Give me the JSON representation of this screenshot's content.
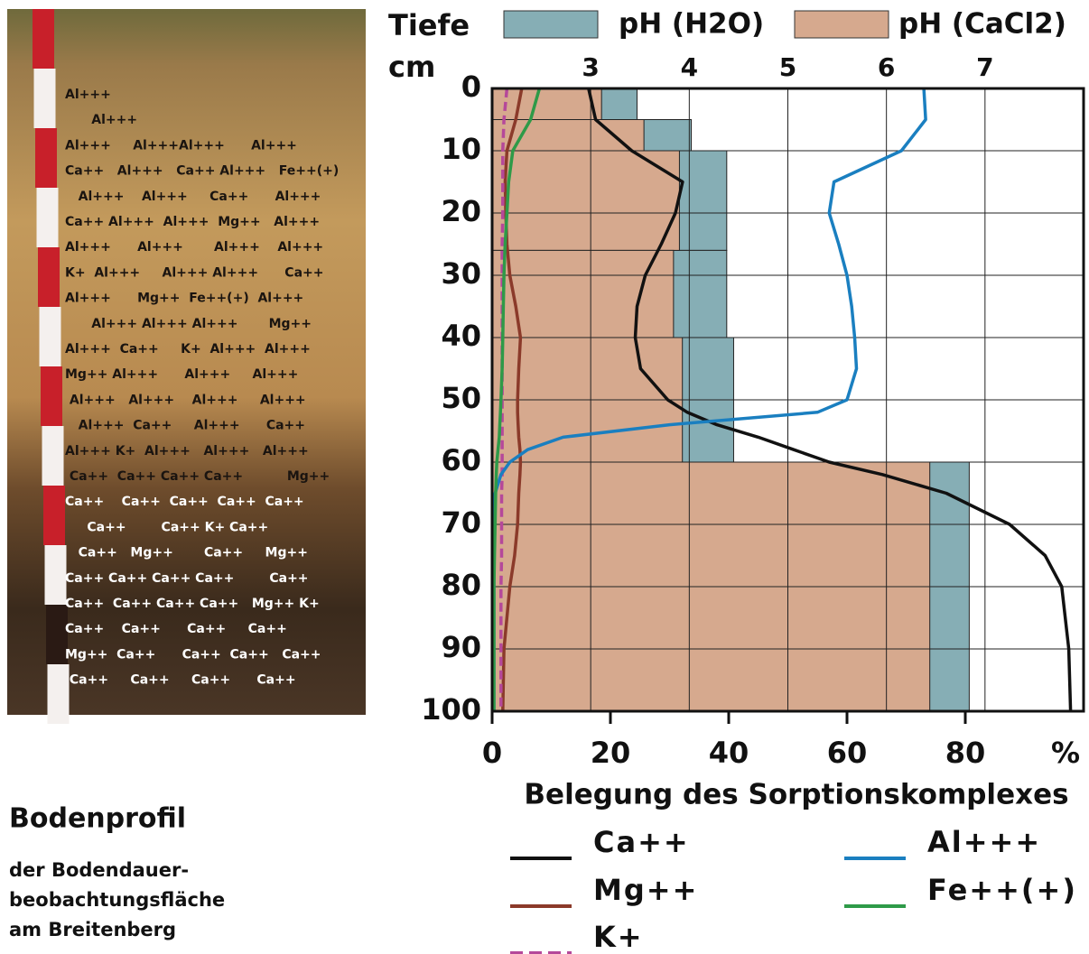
{
  "photo": {
    "labels": [
      "Al+++",
      "      Al+++",
      "Al+++     Al+++Al+++      Al+++",
      "Ca++   Al+++   Ca++ Al+++   Fe++(+)",
      "   Al+++    Al+++     Ca++      Al+++",
      "Ca++ Al+++  Al+++  Mg++   Al+++",
      "Al+++      Al+++       Al+++    Al+++",
      "K+  Al+++     Al+++ Al+++      Ca++",
      "Al+++      Mg++  Fe++(+)  Al+++",
      "      Al+++ Al+++ Al+++       Mg++",
      "Al+++  Ca++     K+  Al+++  Al+++",
      "Mg++ Al+++      Al+++     Al+++",
      " Al+++   Al+++    Al+++     Al+++",
      "   Al+++  Ca++     Al+++      Ca++",
      "Al+++ K+  Al+++   Al+++   Al+++",
      " Ca++  Ca++ Ca++ Ca++          Mg++",
      "Ca++    Ca++  Ca++  Ca++  Ca++",
      "     Ca++        Ca++ K+ Ca++",
      "   Ca++   Mg++       Ca++     Mg++",
      "Ca++ Ca++ Ca++ Ca++        Ca++",
      "Ca++  Ca++ Ca++ Ca++   Mg++ K+",
      "Ca++    Ca++      Ca++     Ca++",
      "Mg++  Ca++      Ca++  Ca++   Ca++",
      " Ca++     Ca++     Ca++      Ca++"
    ]
  },
  "caption": {
    "title": "Bodenprofil",
    "lines": [
      "der Bodendauer-",
      "beobachtungsfläche",
      "am Breitenberg"
    ]
  },
  "chart_data": {
    "type": "depth_profile",
    "ylabel": "Tiefe",
    "yunit": "cm",
    "ylim": [
      0,
      100
    ],
    "yticks": [
      0,
      10,
      20,
      30,
      40,
      50,
      60,
      70,
      80,
      90,
      100
    ],
    "y_inverted": true,
    "xlabel": "Belegung des Sorptionskomplexes",
    "xunit": "%",
    "xlim": [
      0,
      100
    ],
    "xticks": [
      0,
      20,
      40,
      60,
      80
    ],
    "x2lim": [
      2,
      8
    ],
    "x2ticks": [
      3,
      4,
      5,
      6,
      7
    ],
    "grid": true,
    "horizons": {
      "top": [
        0,
        5,
        10,
        26,
        40,
        60
      ],
      "bottom": [
        5,
        10,
        26,
        40,
        60,
        100
      ]
    },
    "ph_series": [
      {
        "name": "pH (H2O)",
        "color": "#86aeb5",
        "values": [
          3.47,
          4.02,
          4.38,
          4.38,
          4.45,
          6.84
        ]
      },
      {
        "name": "pH (CaCl2)",
        "color": "#d6a98e",
        "values": [
          3.11,
          3.54,
          3.9,
          3.84,
          3.93,
          6.44
        ]
      }
    ],
    "depths": [
      0,
      5,
      10,
      15,
      20,
      25,
      30,
      35,
      40,
      45,
      50,
      52,
      54,
      56,
      58,
      60,
      62,
      65,
      70,
      75,
      80,
      90,
      100
    ],
    "series": [
      {
        "name": "Ca++",
        "color": "#111111",
        "dashed": false,
        "values": [
          16.3,
          17.5,
          23.6,
          32.2,
          31,
          28.6,
          25.9,
          24.5,
          24.2,
          25.1,
          29.7,
          33,
          38,
          45,
          51,
          57,
          66,
          76.8,
          87.5,
          93.5,
          96.3,
          97.5,
          97.8
        ]
      },
      {
        "name": "Mg++",
        "color": "#8b3a2a",
        "dashed": false,
        "values": [
          5,
          4,
          2.5,
          2.2,
          2.3,
          2.5,
          3,
          4,
          4.8,
          4.5,
          4.3,
          4.3,
          4.4,
          4.5,
          4.7,
          4.8,
          4.7,
          4.5,
          4.3,
          3.8,
          3,
          2,
          1.8
        ]
      },
      {
        "name": "K+",
        "color": "#b5489a",
        "dashed": true,
        "values": [
          2.5,
          2,
          1.8,
          1.8,
          1.8,
          1.7,
          1.7,
          1.7,
          1.7,
          1.7,
          1.7,
          1.7,
          1.7,
          1.7,
          1.7,
          1.7,
          1.7,
          1.6,
          1.6,
          1.6,
          1.5,
          1.5,
          1.5
        ]
      },
      {
        "name": "Al+++",
        "color": "#1a7fc0",
        "dashed": false,
        "values": [
          73,
          73.3,
          69.2,
          57.8,
          57,
          58.6,
          60,
          60.8,
          61.3,
          61.6,
          60,
          55,
          30,
          12,
          6,
          3,
          1.5,
          0.5,
          0.3,
          0.3,
          0.3,
          0.3,
          0.3
        ]
      },
      {
        "name": "Fe++(+)",
        "color": "#2e9a48",
        "dashed": false,
        "values": [
          8,
          6.5,
          3.5,
          2.8,
          2.5,
          2.2,
          2,
          1.9,
          1.8,
          1.7,
          1.5,
          1.4,
          1.3,
          1.2,
          1,
          0.8,
          0.7,
          0.6,
          0.5,
          0.4,
          0.3,
          0.3,
          0.3
        ]
      }
    ]
  }
}
